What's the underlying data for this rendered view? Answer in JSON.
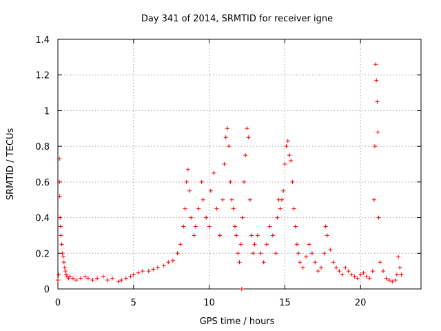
{
  "chart_data": {
    "type": "scatter",
    "title": "Day 341 of 2014, SRMTID for receiver igne",
    "xlabel": "GPS time / hours",
    "ylabel": "SRMTID / TECUs",
    "xlim": [
      0,
      24
    ],
    "ylim": [
      0,
      1.4
    ],
    "xticks": [
      0,
      5,
      10,
      15,
      20
    ],
    "yticks": [
      0,
      0.2,
      0.4,
      0.6,
      0.8,
      1.0,
      1.2,
      1.4
    ],
    "xtick_labels": [
      "0",
      "5",
      "10",
      "15",
      "20"
    ],
    "ytick_labels": [
      "0",
      "0.2",
      "0.4",
      "0.6",
      "0.8",
      "1",
      "1.2",
      "1.4"
    ],
    "grid": true,
    "marker": "+",
    "color": "#ff0000",
    "series": [
      {
        "name": "SRMTID",
        "x": [
          0.0,
          0.05,
          0.1,
          0.1,
          0.12,
          0.15,
          0.18,
          0.2,
          0.25,
          0.3,
          0.35,
          0.4,
          0.45,
          0.5,
          0.55,
          0.6,
          0.7,
          0.8,
          1.0,
          1.2,
          1.5,
          1.8,
          2.0,
          2.3,
          2.6,
          3.0,
          3.3,
          3.6,
          4.0,
          4.2,
          4.5,
          4.8,
          5.0,
          5.3,
          5.6,
          6.0,
          6.3,
          6.6,
          7.0,
          7.3,
          7.6,
          7.9,
          8.1,
          8.3,
          8.4,
          8.5,
          8.6,
          8.7,
          8.8,
          9.0,
          9.1,
          9.3,
          9.5,
          9.6,
          9.8,
          10.0,
          10.1,
          10.3,
          10.5,
          10.7,
          10.9,
          11.0,
          11.1,
          11.2,
          11.3,
          11.4,
          11.5,
          11.6,
          11.7,
          11.8,
          11.9,
          12.0,
          12.1,
          12.2,
          12.3,
          12.4,
          12.5,
          12.6,
          12.7,
          12.8,
          12.9,
          13.0,
          13.2,
          13.4,
          13.6,
          13.8,
          14.0,
          14.2,
          14.4,
          14.5,
          14.6,
          14.7,
          14.8,
          14.9,
          15.0,
          15.1,
          15.2,
          15.3,
          15.4,
          15.5,
          15.6,
          15.7,
          15.8,
          15.9,
          16.0,
          16.2,
          16.4,
          16.6,
          16.8,
          17.0,
          17.2,
          17.4,
          17.6,
          17.7,
          17.8,
          18.0,
          18.2,
          18.4,
          18.6,
          18.8,
          19.0,
          19.2,
          19.4,
          19.6,
          19.8,
          20.0,
          20.2,
          20.4,
          20.6,
          20.8,
          20.9,
          20.95,
          21.0,
          21.05,
          21.1,
          21.15,
          21.2,
          21.3,
          21.5,
          21.7,
          21.9,
          22.1,
          22.3,
          22.4,
          22.5,
          22.6,
          22.7,
          12.15
        ],
        "y": [
          0.05,
          0.08,
          0.73,
          0.6,
          0.52,
          0.4,
          0.35,
          0.3,
          0.25,
          0.2,
          0.18,
          0.15,
          0.12,
          0.1,
          0.08,
          0.07,
          0.06,
          0.07,
          0.06,
          0.05,
          0.06,
          0.07,
          0.06,
          0.05,
          0.06,
          0.07,
          0.05,
          0.06,
          0.04,
          0.05,
          0.06,
          0.07,
          0.08,
          0.09,
          0.1,
          0.1,
          0.11,
          0.12,
          0.13,
          0.15,
          0.16,
          0.2,
          0.25,
          0.35,
          0.45,
          0.6,
          0.67,
          0.55,
          0.4,
          0.3,
          0.35,
          0.45,
          0.6,
          0.5,
          0.4,
          0.35,
          0.55,
          0.65,
          0.45,
          0.3,
          0.5,
          0.7,
          0.85,
          0.9,
          0.8,
          0.6,
          0.5,
          0.45,
          0.35,
          0.3,
          0.2,
          0.15,
          0.25,
          0.4,
          0.6,
          0.75,
          0.9,
          0.85,
          0.5,
          0.3,
          0.2,
          0.25,
          0.3,
          0.2,
          0.15,
          0.25,
          0.35,
          0.3,
          0.2,
          0.4,
          0.5,
          0.45,
          0.5,
          0.55,
          0.7,
          0.8,
          0.83,
          0.75,
          0.72,
          0.6,
          0.45,
          0.35,
          0.25,
          0.2,
          0.15,
          0.12,
          0.18,
          0.25,
          0.2,
          0.15,
          0.1,
          0.12,
          0.2,
          0.35,
          0.3,
          0.22,
          0.15,
          0.12,
          0.1,
          0.08,
          0.12,
          0.1,
          0.08,
          0.07,
          0.06,
          0.08,
          0.09,
          0.07,
          0.06,
          0.1,
          0.5,
          0.8,
          1.26,
          1.17,
          1.05,
          0.88,
          0.4,
          0.15,
          0.1,
          0.06,
          0.05,
          0.04,
          0.05,
          0.08,
          0.18,
          0.12,
          0.08,
          0.0
        ]
      }
    ]
  }
}
